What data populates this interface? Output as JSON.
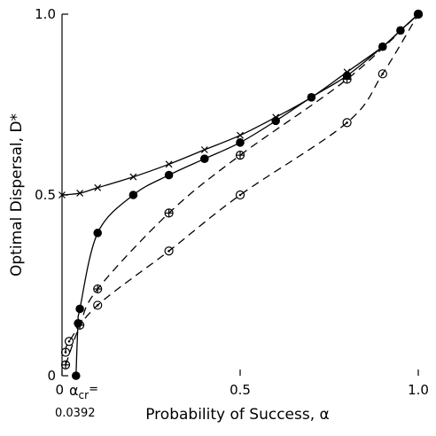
{
  "chart_data": {
    "type": "line",
    "title": "",
    "xlabel": "Probability of Success, α",
    "ylabel": "Optimal Dispersal, D*",
    "xlim": [
      0,
      1
    ],
    "ylim": [
      0,
      1
    ],
    "x_ticks": [
      {
        "value": 0,
        "label": "0"
      },
      {
        "value": 0.5,
        "label": "0.5"
      },
      {
        "value": 1,
        "label": "1.0"
      }
    ],
    "y_ticks": [
      {
        "value": 0,
        "label": "0"
      },
      {
        "value": 0.5,
        "label": "0.5"
      },
      {
        "value": 1,
        "label": "1.0"
      }
    ],
    "grid": false,
    "legend": "none",
    "annotation": {
      "symbol": "α",
      "subscript": "cr",
      "suffix": "=",
      "value_text": "0.0392",
      "x": 0.0392
    },
    "series": [
      {
        "marker": "x",
        "style": "solid",
        "points": [
          [
            0,
            0.5
          ],
          [
            0.05,
            0.505
          ],
          [
            0.1,
            0.52
          ],
          [
            0.2,
            0.55
          ],
          [
            0.3,
            0.585
          ],
          [
            0.4,
            0.625
          ],
          [
            0.5,
            0.665
          ],
          [
            0.6,
            0.715
          ],
          [
            0.7,
            0.77
          ],
          [
            0.8,
            0.84
          ],
          [
            0.9,
            0.91
          ],
          [
            0.95,
            0.955
          ],
          [
            1,
            1
          ]
        ]
      },
      {
        "marker": "filled-circle",
        "style": "solid",
        "points": [
          [
            0.0392,
            0
          ],
          [
            0.045,
            0.145
          ],
          [
            0.05,
            0.185
          ],
          [
            0.1,
            0.395
          ],
          [
            0.2,
            0.5
          ],
          [
            0.3,
            0.555
          ],
          [
            0.4,
            0.6
          ],
          [
            0.5,
            0.645
          ],
          [
            0.6,
            0.705
          ],
          [
            0.7,
            0.77
          ],
          [
            0.8,
            0.83
          ],
          [
            0.9,
            0.91
          ],
          [
            0.95,
            0.955
          ],
          [
            1,
            1
          ]
        ]
      },
      {
        "marker": "circle-plus",
        "style": "dashed",
        "points": [
          [
            0.01,
            0.03
          ],
          [
            0.05,
            0.14
          ],
          [
            0.1,
            0.24
          ],
          [
            0.3,
            0.45
          ],
          [
            0.5,
            0.61
          ],
          [
            0.8,
            0.82
          ],
          [
            1,
            1
          ]
        ]
      },
      {
        "marker": "circle-dot",
        "style": "dashed",
        "points": [
          [
            0.01,
            0.065
          ],
          [
            0.02,
            0.095
          ],
          [
            0.1,
            0.195
          ],
          [
            0.3,
            0.345
          ],
          [
            0.5,
            0.5
          ],
          [
            0.8,
            0.7
          ],
          [
            0.9,
            0.835
          ],
          [
            1,
            1
          ]
        ]
      }
    ]
  }
}
